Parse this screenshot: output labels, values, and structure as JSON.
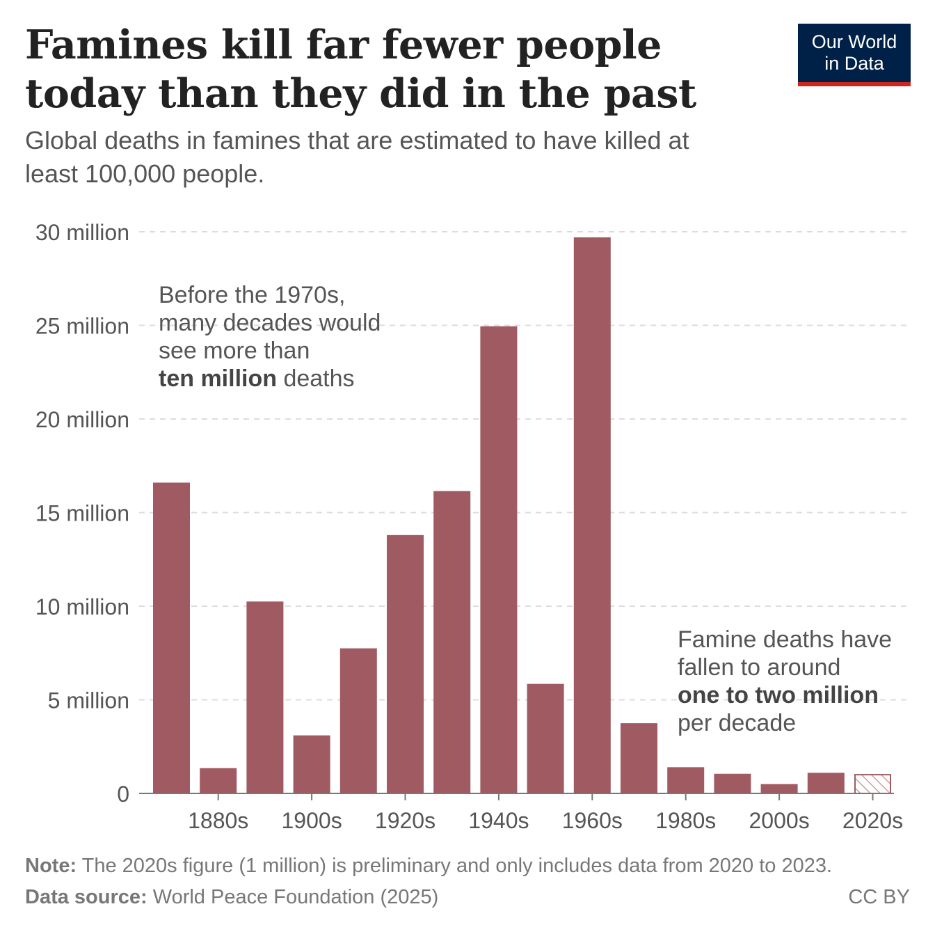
{
  "header": {
    "title": "Famines kill far fewer people today than they did in the past",
    "subtitle": "Global deaths in famines that are estimated to have killed at least 100,000 people.",
    "logo_line1": "Our World",
    "logo_line2": "in Data"
  },
  "chart_data": {
    "type": "bar",
    "title": "Famines kill far fewer people today than they did in the past",
    "subtitle": "Global deaths in famines that are estimated to have killed at least 100,000 people.",
    "xlabel": "",
    "ylabel": "",
    "categories": [
      "1870s",
      "1880s",
      "1890s",
      "1900s",
      "1910s",
      "1920s",
      "1930s",
      "1940s",
      "1950s",
      "1960s",
      "1970s",
      "1980s",
      "1990s",
      "2000s",
      "2010s",
      "2020s"
    ],
    "values": [
      16.6,
      1.35,
      10.25,
      3.1,
      7.75,
      13.8,
      16.15,
      24.95,
      5.85,
      29.7,
      3.75,
      1.4,
      1.05,
      0.5,
      1.1,
      1.0
    ],
    "preliminary_categories": [
      "2020s"
    ],
    "x_tick_labels": [
      "1880s",
      "1900s",
      "1920s",
      "1940s",
      "1960s",
      "1980s",
      "2000s",
      "2020s"
    ],
    "ylim": [
      0,
      30
    ],
    "y_ticks": [
      0,
      5,
      10,
      15,
      20,
      25,
      30
    ],
    "y_tick_labels": [
      "0",
      "5 million",
      "10 million",
      "15 million",
      "20 million",
      "25 million",
      "30 million"
    ],
    "unit": "million deaths",
    "grid": true,
    "color": "#a05a61",
    "annotations": {
      "left": {
        "lines": [
          [
            {
              "text": "Before the 1970s,",
              "bold": false
            }
          ],
          [
            {
              "text": "many decades would",
              "bold": false
            }
          ],
          [
            {
              "text": "see more than",
              "bold": false
            }
          ],
          [
            {
              "text": "ten million",
              "bold": true
            },
            {
              "text": " deaths",
              "bold": false
            }
          ]
        ]
      },
      "right": {
        "lines": [
          [
            {
              "text": "Famine deaths have",
              "bold": false
            }
          ],
          [
            {
              "text": "fallen to around",
              "bold": false
            }
          ],
          [
            {
              "text": "one to two million",
              "bold": true
            }
          ],
          [
            {
              "text": "per decade",
              "bold": false
            }
          ]
        ]
      }
    }
  },
  "footer": {
    "note_label": "Note:",
    "note_text": " The 2020s figure (1 million) is preliminary and only includes data from 2020 to 2023.",
    "source_label": "Data source:",
    "source_text": " World Peace Foundation (2025)",
    "license": "CC BY"
  }
}
